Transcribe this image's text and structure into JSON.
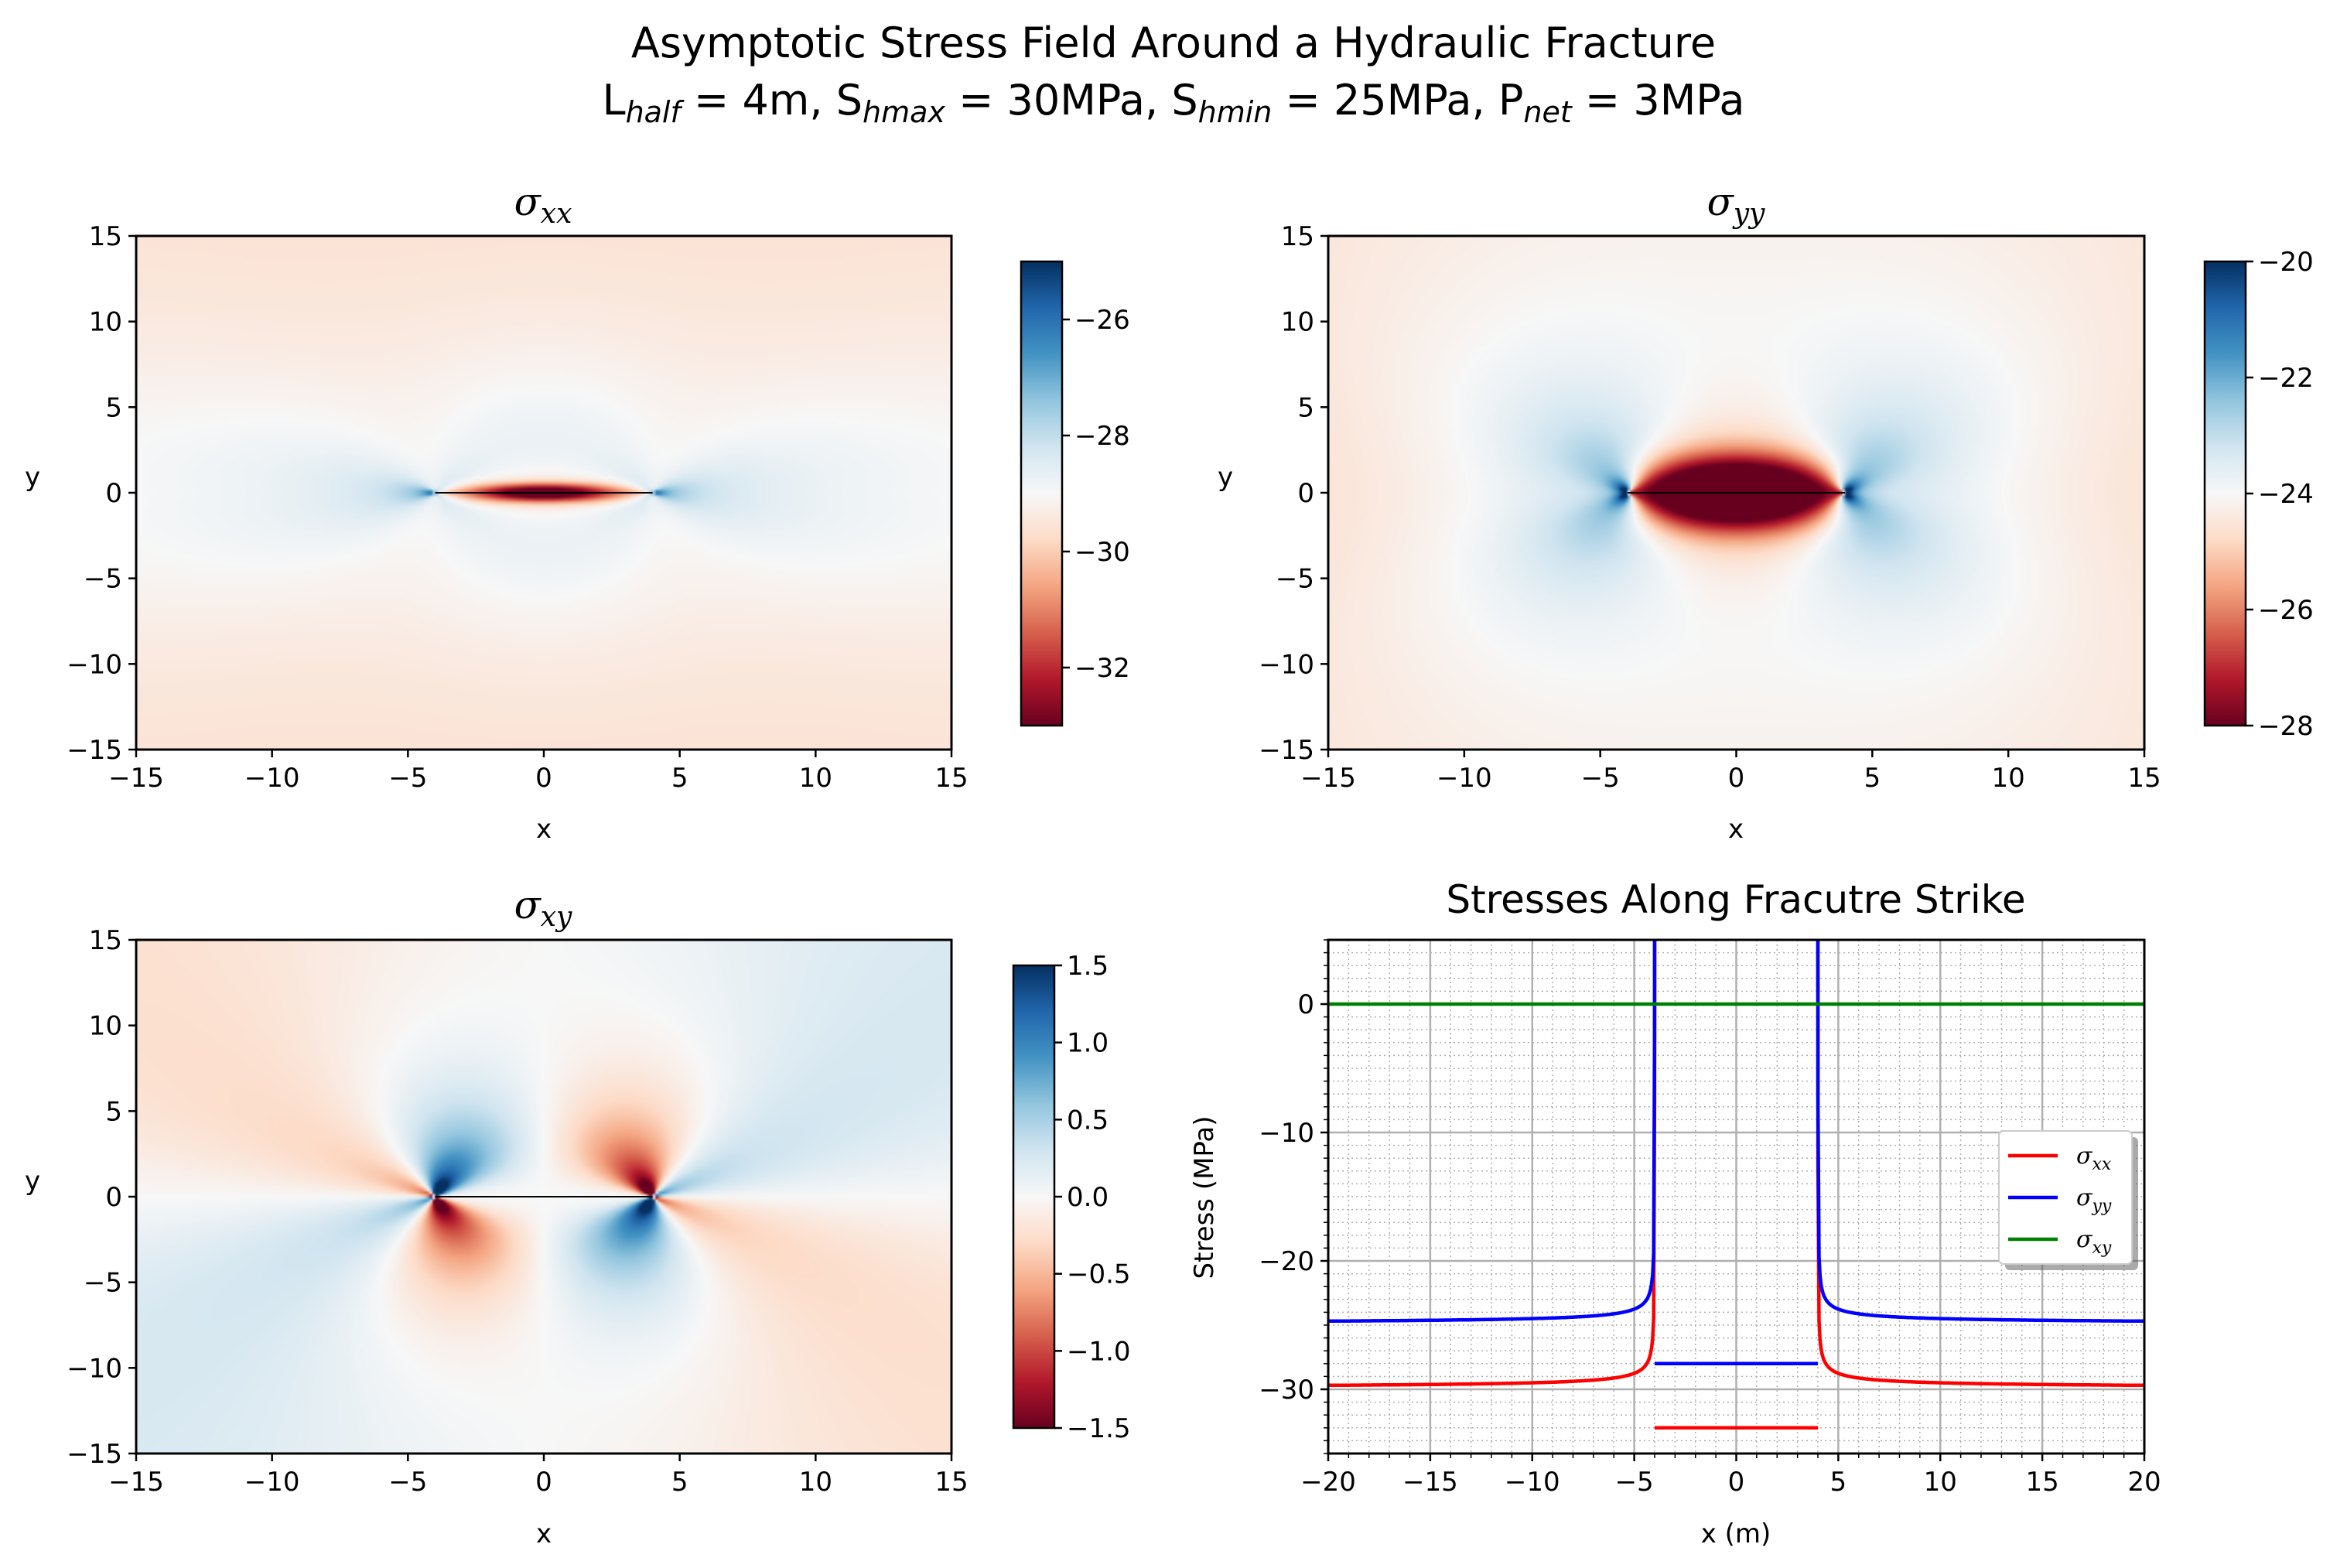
{
  "figure": {
    "title_line1": "Asymptotic Stress Field Around a Hydraulic Fracture",
    "title_line2": [
      {
        "t": "L"
      },
      {
        "t": "half",
        "sub": true
      },
      {
        "t": " = 4m, S"
      },
      {
        "t": "hmax",
        "sub": true
      },
      {
        "t": " = 30MPa, S"
      },
      {
        "t": "hmin",
        "sub": true
      },
      {
        "t": " = 25MPa, P"
      },
      {
        "t": "net",
        "sub": true
      },
      {
        "t": " = 3MPa"
      }
    ]
  },
  "params": {
    "L_half": 4,
    "S_hmax": 30,
    "S_hmin": 25,
    "P_net": 3
  },
  "chart_data": [
    {
      "type": "heatmap",
      "title": {
        "base": "σ",
        "sub": "xx"
      },
      "xlabel": "x",
      "ylabel": "y",
      "xlim": [
        -15,
        15
      ],
      "ylim": [
        -15,
        15
      ],
      "xticks": [
        -15,
        -10,
        -5,
        0,
        5,
        10,
        15
      ],
      "yticks": [
        -15,
        -10,
        -5,
        0,
        5,
        10,
        15
      ],
      "colormap": "RdBu",
      "clim": [
        -33,
        -25
      ],
      "colorbar_ticks": [
        -26,
        -28,
        -30,
        -32
      ],
      "fracture_segment": [
        [
          -4,
          0
        ],
        [
          4,
          0
        ]
      ]
    },
    {
      "type": "heatmap",
      "title": {
        "base": "σ",
        "sub": "yy"
      },
      "xlabel": "x",
      "ylabel": "y",
      "xlim": [
        -15,
        15
      ],
      "ylim": [
        -15,
        15
      ],
      "xticks": [
        -15,
        -10,
        -5,
        0,
        5,
        10,
        15
      ],
      "yticks": [
        -15,
        -10,
        -5,
        0,
        5,
        10,
        15
      ],
      "colormap": "RdBu",
      "clim": [
        -28,
        -20
      ],
      "colorbar_ticks": [
        -20,
        -22,
        -24,
        -26,
        -28
      ],
      "fracture_segment": [
        [
          -4,
          0
        ],
        [
          4,
          0
        ]
      ]
    },
    {
      "type": "heatmap",
      "title": {
        "base": "σ",
        "sub": "xy"
      },
      "xlabel": "x",
      "ylabel": "y",
      "xlim": [
        -15,
        15
      ],
      "ylim": [
        -15,
        15
      ],
      "xticks": [
        -15,
        -10,
        -5,
        0,
        5,
        10,
        15
      ],
      "yticks": [
        -15,
        -10,
        -5,
        0,
        5,
        10,
        15
      ],
      "colormap": "RdBu",
      "clim": [
        -1.5,
        1.5
      ],
      "colorbar_ticks": [
        1.5,
        1.0,
        0.5,
        0.0,
        -0.5,
        -1.0,
        -1.5
      ],
      "fracture_segment": [
        [
          -4,
          0
        ],
        [
          4,
          0
        ]
      ]
    },
    {
      "type": "line",
      "title": "Stresses Along Fracutre Strike",
      "xlabel": "x (m)",
      "ylabel": "Stress (MPa)",
      "xlim": [
        -20,
        20
      ],
      "ylim": [
        -35,
        5
      ],
      "xticks": [
        -20,
        -15,
        -10,
        -5,
        0,
        5,
        10,
        15,
        20
      ],
      "yticks": [
        -30,
        -20,
        -10,
        0
      ],
      "grid": "major and minor",
      "legend_position": "right",
      "series": [
        {
          "name": "σxx",
          "label": {
            "base": "σ",
            "sub": "xx"
          },
          "color": "#ff0000",
          "outside": "from -30 at |x|=20 rising to the tip singularity at |x|=4",
          "inside_value": -33,
          "inside_range": [
            -4,
            4
          ]
        },
        {
          "name": "σyy",
          "label": {
            "base": "σ",
            "sub": "yy"
          },
          "color": "#0000ff",
          "outside": "from -25 at |x|=20 rising to the tip singularity at |x|=4",
          "inside_value": -28,
          "inside_range": [
            -4,
            4
          ]
        },
        {
          "name": "σxy",
          "label": {
            "base": "σ",
            "sub": "xy"
          },
          "color": "#008000",
          "constant_value": 0,
          "range": [
            -20,
            20
          ]
        }
      ],
      "sample_points": {
        "x": [
          -20,
          -15,
          -10,
          -8,
          -6,
          -5,
          -4.5,
          -4.2,
          4.2,
          4.5,
          5,
          6,
          8,
          10,
          15,
          20
        ],
        "sigma_xx": [
          -29.9,
          -29.8,
          -29.6,
          -29.3,
          -28.8,
          -28,
          -26.5,
          -23,
          -23,
          -26.5,
          -28,
          -28.8,
          -29.3,
          -29.6,
          -29.8,
          -29.9
        ],
        "sigma_yy": [
          -24.9,
          -24.8,
          -24.6,
          -24.3,
          -23.8,
          -23,
          -21.5,
          -18,
          -18,
          -21.5,
          -23,
          -23.8,
          -24.3,
          -24.6,
          -24.8,
          -24.9
        ]
      }
    }
  ]
}
